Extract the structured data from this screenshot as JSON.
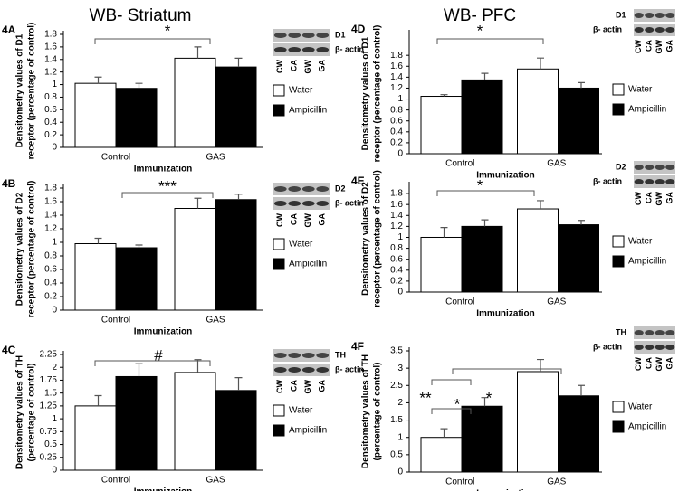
{
  "headers": [
    "WB- Striatum",
    "WB- PFC"
  ],
  "chart_data": [
    {
      "type": "bar",
      "label": "4A",
      "xlabel": "Immunization",
      "ylabel": [
        "Densitometry values of D1",
        "receptor (percentage of control)"
      ],
      "categories": [
        "Control",
        "GAS"
      ],
      "series": [
        {
          "name": "Water",
          "color": "#ffffff",
          "values": [
            1.02,
            1.42
          ],
          "errors": [
            0.1,
            0.18
          ]
        },
        {
          "name": "Ampicillin",
          "color": "#000000",
          "values": [
            0.94,
            1.28
          ],
          "errors": [
            0.08,
            0.14
          ]
        }
      ],
      "ylim": [
        0,
        1.8
      ],
      "yticks": [
        0,
        0.2,
        0.4,
        0.6,
        0.8,
        1,
        1.2,
        1.4,
        1.6,
        1.8
      ],
      "annotations": [
        "*"
      ],
      "blot": {
        "target": "D1",
        "control": "β- actin",
        "lanes": [
          "CW",
          "CA",
          "GW",
          "GA"
        ]
      }
    },
    {
      "type": "bar",
      "label": "4B",
      "xlabel": "Immunization",
      "ylabel": [
        "Densitometry values of D2",
        "receptor (percentage of control)"
      ],
      "categories": [
        "Control",
        "GAS"
      ],
      "series": [
        {
          "name": "Water",
          "color": "#ffffff",
          "values": [
            0.98,
            1.5
          ],
          "errors": [
            0.08,
            0.15
          ]
        },
        {
          "name": "Ampicillin",
          "color": "#000000",
          "values": [
            0.92,
            1.63
          ],
          "errors": [
            0.04,
            0.08
          ]
        }
      ],
      "ylim": [
        0,
        1.8
      ],
      "yticks": [
        0,
        0.2,
        0.4,
        0.6,
        0.8,
        1,
        1.2,
        1.4,
        1.6,
        1.8
      ],
      "annotations": [
        "***"
      ],
      "blot": {
        "target": "D2",
        "control": "β- actin",
        "lanes": [
          "CW",
          "CA",
          "GW",
          "GA"
        ]
      }
    },
    {
      "type": "bar",
      "label": "4C",
      "xlabel": "Immunization",
      "ylabel": [
        "Densitometry values of TH",
        "(percentage of control)"
      ],
      "categories": [
        "Control",
        "GAS"
      ],
      "series": [
        {
          "name": "Water",
          "color": "#ffffff",
          "values": [
            1.25,
            1.9
          ],
          "errors": [
            0.2,
            0.25
          ]
        },
        {
          "name": "Ampicillin",
          "color": "#000000",
          "values": [
            1.82,
            1.55
          ],
          "errors": [
            0.25,
            0.25
          ]
        }
      ],
      "ylim": [
        0,
        2.25
      ],
      "yticks": [
        0,
        0.25,
        0.5,
        0.75,
        1,
        1.25,
        1.5,
        1.75,
        2,
        2.25
      ],
      "annotations": [
        "#"
      ],
      "blot": {
        "target": "TH",
        "control": "β- actin",
        "lanes": [
          "CW",
          "CA",
          "GW",
          "GA"
        ]
      }
    },
    {
      "type": "bar",
      "label": "4D",
      "xlabel": "Immunization",
      "ylabel": [
        "Densitometry values of D1",
        "receptor (percentage of control)"
      ],
      "categories": [
        "Control",
        "GAS"
      ],
      "series": [
        {
          "name": "Water",
          "color": "#ffffff",
          "values": [
            1.05,
            1.55
          ],
          "errors": [
            0.03,
            0.2
          ]
        },
        {
          "name": "Ampicillin",
          "color": "#000000",
          "values": [
            1.35,
            1.2
          ],
          "errors": [
            0.12,
            0.1
          ]
        }
      ],
      "ylim": [
        0,
        2.2
      ],
      "yticks": [
        0,
        0.2,
        0.4,
        0.6,
        0.8,
        1,
        1.2,
        1.4,
        1.6,
        1.8
      ],
      "annotations": [
        "*"
      ],
      "blot": {
        "target": "D1",
        "control": "β- actin",
        "lanes": [
          "CW",
          "CA",
          "GW",
          "GA"
        ]
      }
    },
    {
      "type": "bar",
      "label": "4E",
      "xlabel": "Immunization",
      "ylabel": [
        "Densitometry values of D2",
        "receptor (percentage of control)"
      ],
      "categories": [
        "Control",
        "GAS"
      ],
      "series": [
        {
          "name": "Water",
          "color": "#ffffff",
          "values": [
            1.0,
            1.52
          ],
          "errors": [
            0.18,
            0.15
          ]
        },
        {
          "name": "Ampicillin",
          "color": "#000000",
          "values": [
            1.2,
            1.23
          ],
          "errors": [
            0.12,
            0.08
          ]
        }
      ],
      "ylim": [
        0,
        1.95
      ],
      "yticks": [
        0,
        0.2,
        0.4,
        0.6,
        0.8,
        1,
        1.2,
        1.4,
        1.6,
        1.8
      ],
      "annotations": [
        "*"
      ],
      "blot": {
        "target": "D2",
        "control": "β- actin",
        "lanes": [
          "CW",
          "CA",
          "GW",
          "GA"
        ]
      }
    },
    {
      "type": "bar",
      "label": "4F",
      "xlabel": "Immunization",
      "ylabel": [
        "Densitometry values of TH",
        "(percentage of control)"
      ],
      "categories": [
        "Control",
        "GAS"
      ],
      "series": [
        {
          "name": "Water",
          "color": "#ffffff",
          "values": [
            1.0,
            2.9
          ],
          "errors": [
            0.25,
            0.35
          ]
        },
        {
          "name": "Ampicillin",
          "color": "#000000",
          "values": [
            1.9,
            2.2
          ],
          "errors": [
            0.25,
            0.3
          ]
        }
      ],
      "ylim": [
        0,
        3.5
      ],
      "yticks": [
        0,
        0.5,
        1,
        1.5,
        2,
        2.5,
        3,
        3.5
      ],
      "annotations": [
        "**",
        "*",
        "*"
      ],
      "blot": {
        "target": "TH",
        "control": "β- actin",
        "lanes": [
          "CW",
          "CA",
          "GW",
          "GA"
        ]
      }
    }
  ]
}
